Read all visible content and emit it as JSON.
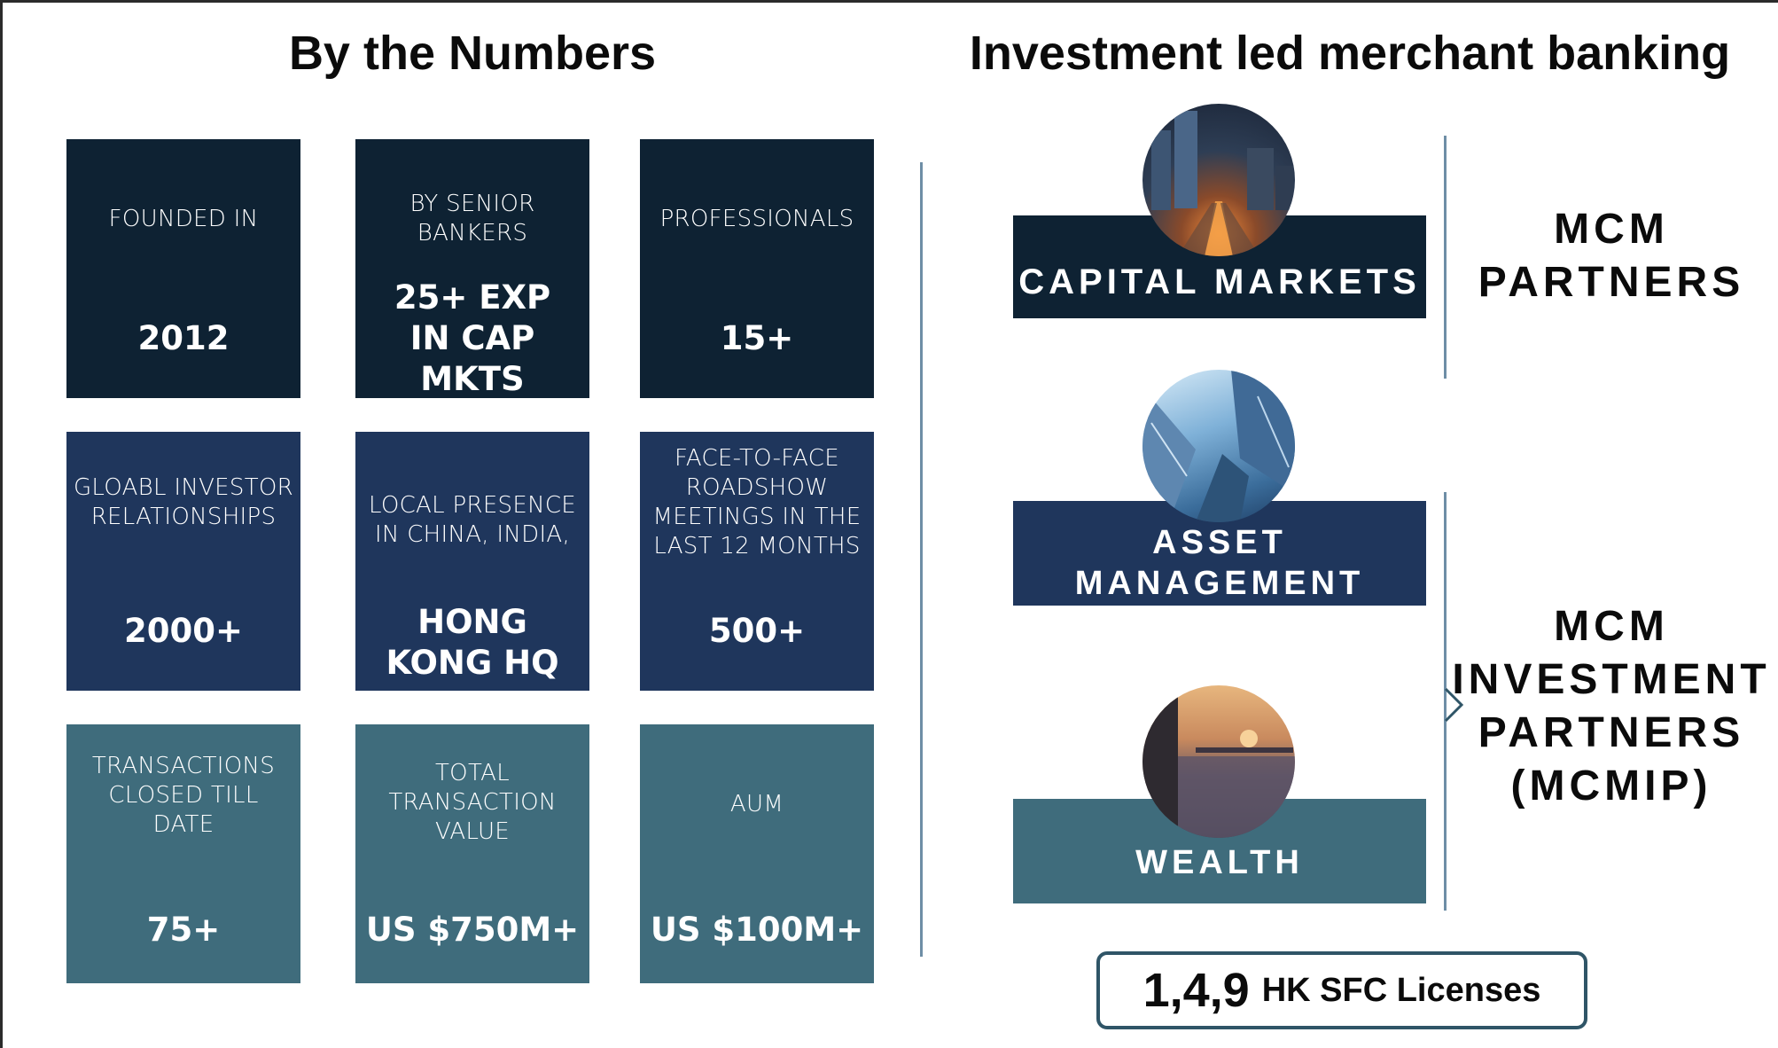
{
  "headings": {
    "left": "By the Numbers",
    "right": "Investment led merchant banking"
  },
  "tiles": [
    {
      "label": "FOUNDED IN",
      "value": "2012"
    },
    {
      "label": "BY SENIOR BANKERS",
      "value": "25+ EXP IN CAP MKTS"
    },
    {
      "label": "PROFESSIONALS",
      "value": "15+"
    },
    {
      "label": "GLOABL INVESTOR RELATIONSHIPS",
      "value": "2000+"
    },
    {
      "label": "LOCAL PRESENCE IN CHINA, INDIA,",
      "value": "HONG KONG HQ"
    },
    {
      "label": "FACE-TO-FACE ROADSHOW MEETINGS IN THE LAST 12 MONTHS",
      "value": "500+"
    },
    {
      "label": "TRANSACTIONS CLOSED TILL DATE",
      "value": "75+"
    },
    {
      "label": "TOTAL TRANSACTION VALUE",
      "value": "US $750M+"
    },
    {
      "label": "AUM",
      "value": "US $100M+"
    }
  ],
  "business_lines": {
    "capital_markets": "CAPITAL MARKETS",
    "asset_management_1": "ASSET",
    "asset_management_2": "MANAGEMENT",
    "wealth": "WEALTH"
  },
  "groups": {
    "partners": [
      "MCM",
      "PARTNERS"
    ],
    "mcmip": [
      "MCM",
      "INVESTMENT",
      "PARTNERS",
      "(MCMIP)"
    ]
  },
  "license": {
    "number": "1,4,9",
    "text": "HK SFC Licenses"
  },
  "colors": {
    "dark": "#0e2233",
    "navy": "#1f365c",
    "teal": "#3f6c7c",
    "accent_line": "#6e8ea6"
  },
  "images": [
    "city-traffic-photo",
    "skyscrapers-photo",
    "harbor-sunset-photo"
  ]
}
